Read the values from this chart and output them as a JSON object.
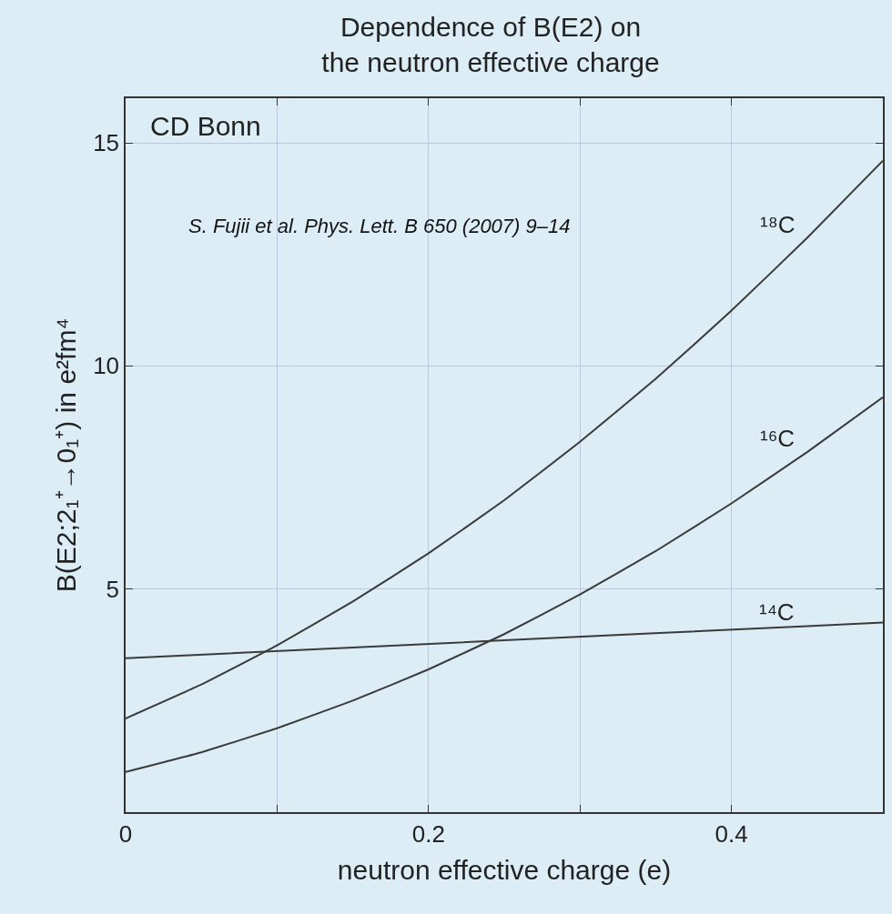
{
  "chart_data": {
    "type": "line",
    "title": "Dependence of B(E2) on\nthe neutron effective charge",
    "xlabel": "neutron effective charge (e)",
    "ylabel": "B(E2;2₁⁺→0₁⁺) in e²fm⁴",
    "series": [
      {
        "name": "¹⁸C",
        "color": "#3a3a3a",
        "x": [
          0,
          0.05,
          0.1,
          0.15,
          0.2,
          0.25,
          0.3,
          0.35,
          0.4,
          0.45,
          0.5
        ],
        "values": [
          2.1,
          2.86,
          3.74,
          4.72,
          5.8,
          6.99,
          8.3,
          9.71,
          11.24,
          12.87,
          14.6
        ]
      },
      {
        "name": "¹⁶C",
        "color": "#3a3a3a",
        "x": [
          0,
          0.05,
          0.1,
          0.15,
          0.2,
          0.25,
          0.3,
          0.35,
          0.4,
          0.45,
          0.5
        ],
        "values": [
          0.9,
          1.34,
          1.88,
          2.5,
          3.2,
          3.99,
          4.88,
          5.85,
          6.92,
          8.07,
          9.3
        ]
      },
      {
        "name": "¹⁴C",
        "color": "#3a3a3a",
        "x": [
          0,
          0.25,
          0.45,
          0.5
        ],
        "values": [
          3.45,
          3.85,
          4.17,
          4.25
        ]
      }
    ],
    "annotations": [
      "CD Bonn",
      "S. Fujii et al. Phys. Lett. B 650 (2007) 9–14"
    ],
    "xlim": [
      0,
      0.5
    ],
    "xticks": [
      0,
      {
        "value": 0.1,
        "label": null
      },
      0.2,
      {
        "value": 0.3,
        "label": null
      },
      0.4
    ],
    "ylim": [
      0,
      16
    ],
    "yticks": [
      5,
      10,
      15
    ],
    "grid": true,
    "legend": false,
    "marker": "none",
    "line_style": "solid"
  }
}
